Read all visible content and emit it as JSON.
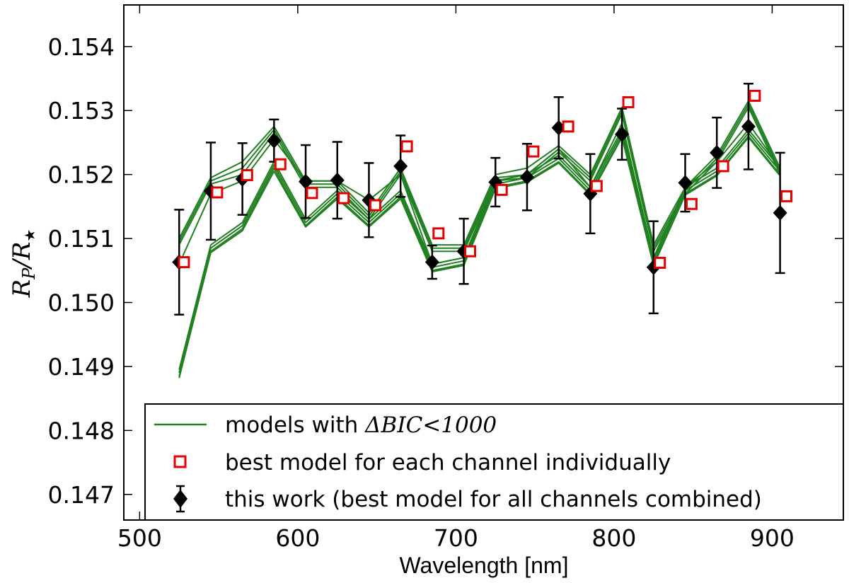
{
  "chart_data": {
    "type": "line",
    "xlabel": "Wavelength [nm]",
    "ylabel": {
      "main": "R",
      "sub1": "P",
      "slash": "/",
      "main2": "R",
      "sub2": "★"
    },
    "xlim": [
      490,
      945
    ],
    "ylim": [
      0.1466,
      0.15465
    ],
    "xticks": [
      500,
      600,
      700,
      800,
      900
    ],
    "xtick_labels": [
      "500",
      "600",
      "700",
      "800",
      "900"
    ],
    "yticks": [
      0.147,
      0.148,
      0.149,
      0.15,
      0.151,
      0.152,
      0.153,
      0.154
    ],
    "ytick_labels": [
      "0.147",
      "0.148",
      "0.149",
      "0.150",
      "0.151",
      "0.152",
      "0.153",
      "0.154"
    ],
    "x": [
      525,
      545,
      565,
      585,
      605,
      625,
      645,
      665,
      685,
      705,
      725,
      745,
      765,
      785,
      805,
      825,
      845,
      865,
      885,
      905
    ],
    "model_series": [
      {
        "name": "model-1",
        "values": [
          0.151,
          0.15195,
          0.1522,
          0.15275,
          0.1519,
          0.1519,
          0.1514,
          0.1521,
          0.1509,
          0.1509,
          0.152,
          0.1521,
          0.15245,
          0.152,
          0.15305,
          0.1509,
          0.1518,
          0.1523,
          0.15315,
          0.1521
        ]
      },
      {
        "name": "model-2",
        "values": [
          0.15095,
          0.1519,
          0.1521,
          0.1527,
          0.15185,
          0.15185,
          0.15135,
          0.15205,
          0.15085,
          0.15085,
          0.15195,
          0.152,
          0.1524,
          0.15195,
          0.153,
          0.15085,
          0.15175,
          0.15225,
          0.1531,
          0.15205
        ]
      },
      {
        "name": "model-3",
        "values": [
          0.1509,
          0.15185,
          0.152,
          0.15265,
          0.1518,
          0.1518,
          0.1513,
          0.152,
          0.1508,
          0.1508,
          0.1519,
          0.15195,
          0.15235,
          0.1519,
          0.15295,
          0.1508,
          0.1517,
          0.1522,
          0.15305,
          0.152
        ]
      },
      {
        "name": "model-4",
        "values": [
          0.1506,
          0.1517,
          0.1519,
          0.15255,
          0.1519,
          0.1519,
          0.1516,
          0.152,
          0.1506,
          0.1507,
          0.1519,
          0.152,
          0.1524,
          0.1518,
          0.1528,
          0.1507,
          0.1518,
          0.1522,
          0.1528,
          0.1521
        ]
      },
      {
        "name": "model-5",
        "values": [
          0.14895,
          0.1509,
          0.15125,
          0.1522,
          0.1513,
          0.15175,
          0.1513,
          0.15175,
          0.1506,
          0.1507,
          0.1519,
          0.152,
          0.1523,
          0.1518,
          0.1527,
          0.1507,
          0.1518,
          0.1521,
          0.1527,
          0.1521
        ]
      },
      {
        "name": "model-6",
        "values": [
          0.1489,
          0.15085,
          0.1512,
          0.15215,
          0.15125,
          0.1517,
          0.15125,
          0.1517,
          0.15055,
          0.15065,
          0.15185,
          0.15195,
          0.15225,
          0.15175,
          0.15265,
          0.15065,
          0.15175,
          0.15205,
          0.15265,
          0.15205
        ]
      },
      {
        "name": "model-7",
        "values": [
          0.14885,
          0.1508,
          0.15115,
          0.1521,
          0.1512,
          0.15165,
          0.1512,
          0.15165,
          0.1505,
          0.1506,
          0.1518,
          0.1519,
          0.1522,
          0.1517,
          0.1526,
          0.1506,
          0.1517,
          0.152,
          0.1526,
          0.152
        ]
      },
      {
        "name": "model-8",
        "values": [
          0.14882,
          0.15078,
          0.15112,
          0.15205,
          0.15118,
          0.15162,
          0.15118,
          0.15162,
          0.15048,
          0.15058,
          0.15178,
          0.15188,
          0.15218,
          0.15168,
          0.15258,
          0.15058,
          0.15168,
          0.15198,
          0.15258,
          0.15198
        ]
      }
    ],
    "best_individual": {
      "x": [
        528,
        549,
        568,
        589,
        609,
        629,
        649,
        669,
        689,
        709,
        729,
        749,
        771,
        789,
        809,
        829,
        849,
        869,
        889,
        909
      ],
      "values": [
        0.15063,
        0.15172,
        0.15199,
        0.15216,
        0.15171,
        0.15163,
        0.15152,
        0.15244,
        0.15108,
        0.1508,
        0.15176,
        0.15236,
        0.15275,
        0.15182,
        0.15313,
        0.15062,
        0.15154,
        0.15213,
        0.15323,
        0.15166
      ]
    },
    "this_work": {
      "x": [
        525,
        545,
        565,
        585,
        605,
        625,
        645,
        665,
        685,
        705,
        725,
        745,
        765,
        785,
        805,
        825,
        845,
        865,
        885,
        905
      ],
      "values": [
        0.15063,
        0.15174,
        0.15193,
        0.15253,
        0.15189,
        0.15191,
        0.1516,
        0.15213,
        0.15063,
        0.1508,
        0.15188,
        0.15196,
        0.15273,
        0.1517,
        0.15263,
        0.15055,
        0.15187,
        0.15234,
        0.15275,
        0.1514
      ],
      "errors": [
        0.00082,
        0.00076,
        0.00056,
        0.00033,
        0.00057,
        0.0006,
        0.00058,
        0.00048,
        0.00026,
        0.00051,
        0.00038,
        0.00052,
        0.00048,
        0.00062,
        0.0004,
        0.00072,
        0.00045,
        0.00055,
        0.00067,
        0.00094
      ]
    },
    "legend": {
      "placement": "lower-right",
      "models_prefix": "models with ",
      "models_math": "ΔBIC<1000",
      "best_individual_label": "best model for each channel individually",
      "this_work_label": "this work (best model for all channels combined)"
    },
    "colors": {
      "model": "#218021",
      "best_individual": "#e60000",
      "this_work": "#000000",
      "axis": "#000000"
    }
  }
}
